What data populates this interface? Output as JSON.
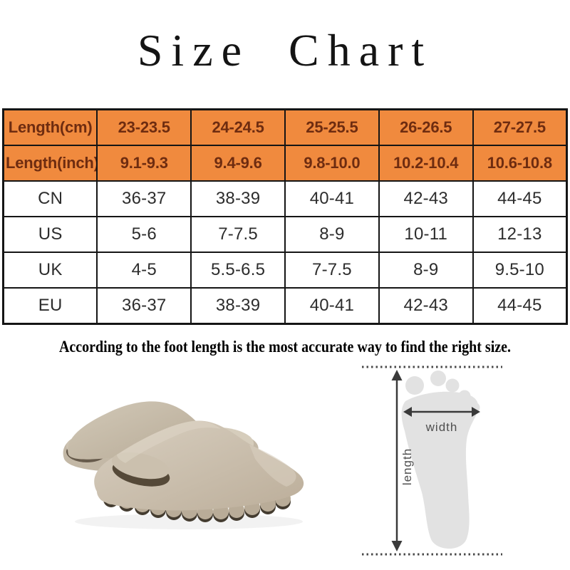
{
  "page": {
    "title": "Size Chart"
  },
  "table": {
    "rows": [
      {
        "style": "header",
        "cells": [
          "Length(cm)",
          "23-23.5",
          "24-24.5",
          "25-25.5",
          "26-26.5",
          "27-27.5"
        ]
      },
      {
        "style": "header",
        "cells": [
          "Length(inch)",
          "9.1-9.3",
          "9.4-9.6",
          "9.8-10.0",
          "10.2-10.4",
          "10.6-10.8"
        ]
      },
      {
        "style": "body",
        "cells": [
          "CN",
          "36-37",
          "38-39",
          "40-41",
          "42-43",
          "44-45"
        ]
      },
      {
        "style": "body",
        "cells": [
          "US",
          "5-6",
          "7-7.5",
          "8-9",
          "10-11",
          "12-13"
        ]
      },
      {
        "style": "body",
        "cells": [
          "UK",
          "4-5",
          "5.5-6.5",
          "7-7.5",
          "8-9",
          "9.5-10"
        ]
      },
      {
        "style": "body",
        "cells": [
          "EU",
          "36-37",
          "38-39",
          "40-41",
          "42-43",
          "44-45"
        ]
      }
    ]
  },
  "note": "According to the foot length is the most  accurate way to find the right size.",
  "diagram": {
    "width_label": "width",
    "length_label": "length"
  },
  "illustrations": {
    "slippers": "pair-of-beige-pillow-slide-slippers",
    "foot": "light-gray-footprint-outline-with-measure-arrows"
  },
  "colors": {
    "header_bg": "#F08A3E",
    "header_text": "#6E2C10",
    "body_text": "#2D2D2D",
    "grid_border": "#151515",
    "arrow": "#3A3A3A",
    "footprint": "#E2E2E2",
    "slipper_main": "#C9BEAD",
    "slipper_shadow": "#554938"
  }
}
